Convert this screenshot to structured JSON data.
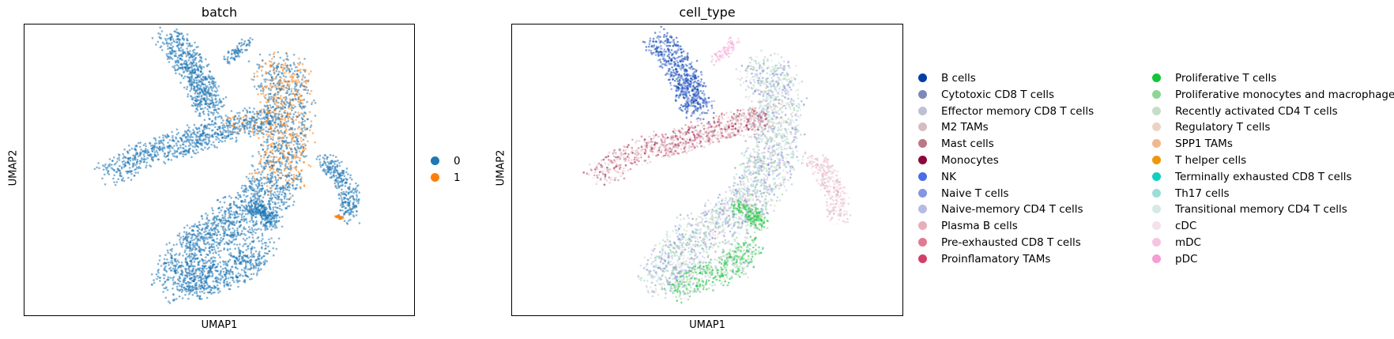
{
  "chart_data": [
    {
      "type": "scatter",
      "title": "batch",
      "xlabel": "UMAP1",
      "ylabel": "UMAP2",
      "grid": false,
      "ticks": false,
      "legend_position": "right",
      "legend": [
        {
          "label": "0",
          "color": "#1f77b4"
        },
        {
          "label": "1",
          "color": "#ff7f0e"
        }
      ]
    },
    {
      "type": "scatter",
      "title": "cell_type",
      "xlabel": "UMAP1",
      "ylabel": "UMAP2",
      "grid": false,
      "ticks": false,
      "legend_position": "right",
      "legend": [
        {
          "label": "B cells",
          "color": "#023fa5"
        },
        {
          "label": "Cytotoxic CD8 T cells",
          "color": "#7d87b9"
        },
        {
          "label": "Effector memory CD8 T cells",
          "color": "#bec1d4"
        },
        {
          "label": "M2 TAMs",
          "color": "#d6bcc0"
        },
        {
          "label": "Mast cells",
          "color": "#bb7784"
        },
        {
          "label": "Monocytes",
          "color": "#8e063b"
        },
        {
          "label": "NK",
          "color": "#4a6fe3"
        },
        {
          "label": "Naive T cells",
          "color": "#8595e1"
        },
        {
          "label": "Naive-memory CD4 T cells",
          "color": "#b5bbe3"
        },
        {
          "label": "Plasma B cells",
          "color": "#e6afb9"
        },
        {
          "label": "Pre-exhausted CD8 T cells",
          "color": "#e07b91"
        },
        {
          "label": "Proinflamatory TAMs",
          "color": "#d33f6a"
        },
        {
          "label": "Proliferative T cells",
          "color": "#11c638"
        },
        {
          "label": "Proliferative monocytes and macrophages",
          "color": "#8dd593"
        },
        {
          "label": "Recently activated CD4 T cells",
          "color": "#c6dec7"
        },
        {
          "label": "Regulatory T cells",
          "color": "#ead3c6"
        },
        {
          "label": "SPP1 TAMs",
          "color": "#f0b98d"
        },
        {
          "label": "T helper cells",
          "color": "#ef9708"
        },
        {
          "label": "Terminally exhausted CD8 T cells",
          "color": "#0fcfc0"
        },
        {
          "label": "Th17 cells",
          "color": "#9cded6"
        },
        {
          "label": "Transitional memory CD4 T cells",
          "color": "#d5eae7"
        },
        {
          "label": "cDC",
          "color": "#f3e1eb"
        },
        {
          "label": "mDC",
          "color": "#f6c4e1"
        },
        {
          "label": "pDC",
          "color": "#f79cd4"
        }
      ]
    }
  ]
}
